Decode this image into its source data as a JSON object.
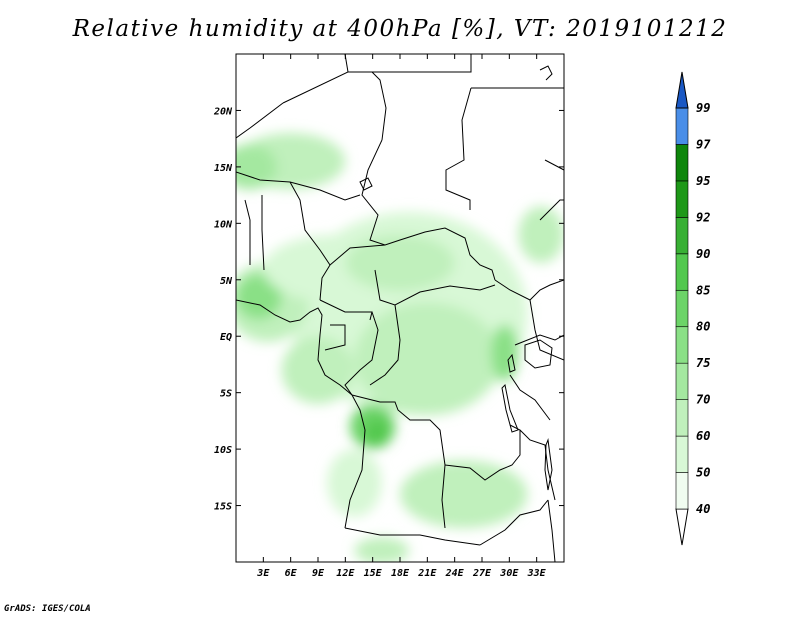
{
  "title": "Relative humidity at 400hPa [%], VT: 2019101212",
  "credit": "GrADS: IGES/COLA",
  "map": {
    "lon_range": [
      0,
      36
    ],
    "lat_range": [
      -20,
      25
    ],
    "lat_ticks": [
      {
        "lat": 20,
        "label": "20N"
      },
      {
        "lat": 15,
        "label": "15N"
      },
      {
        "lat": 10,
        "label": "10N"
      },
      {
        "lat": 5,
        "label": "5N"
      },
      {
        "lat": 0,
        "label": "EQ"
      },
      {
        "lat": -5,
        "label": "5S"
      },
      {
        "lat": -10,
        "label": "10S"
      },
      {
        "lat": -15,
        "label": "15S"
      }
    ],
    "lon_ticks": [
      {
        "lon": 3,
        "label": "3E"
      },
      {
        "lon": 6,
        "label": "6E"
      },
      {
        "lon": 9,
        "label": "9E"
      },
      {
        "lon": 12,
        "label": "12E"
      },
      {
        "lon": 15,
        "label": "15E"
      },
      {
        "lon": 18,
        "label": "18E"
      },
      {
        "lon": 21,
        "label": "21E"
      },
      {
        "lon": 24,
        "label": "24E"
      },
      {
        "lon": 27,
        "label": "27E"
      },
      {
        "lon": 30,
        "label": "30E"
      },
      {
        "lon": 33,
        "label": "33E"
      }
    ]
  },
  "colorbar": {
    "levels": [
      "40",
      "50",
      "60",
      "70",
      "75",
      "80",
      "85",
      "90",
      "92",
      "95",
      "97",
      "99"
    ],
    "colors": [
      "#f0fcf0",
      "#d8f8d6",
      "#c0f0bc",
      "#a4e8a0",
      "#8ae086",
      "#6cd468",
      "#52c84e",
      "#38b034",
      "#1e9818",
      "#0f860c",
      "#4a8ee8",
      "#2a6cd6",
      "#1a58c4"
    ]
  },
  "humidity_regions": [
    {
      "name": "sahel-band",
      "lon": 6.0,
      "lat": 15.5,
      "rx": 6.0,
      "ry": 2.5,
      "level": 1
    },
    {
      "name": "sahel-band-west",
      "lon": 1.5,
      "lat": 15.0,
      "rx": 3.0,
      "ry": 2.0,
      "level": 2
    },
    {
      "name": "central-africa-broad",
      "lon": 19.0,
      "lat": 2.0,
      "rx": 13.0,
      "ry": 9.0,
      "level": 0
    },
    {
      "name": "cameroon-west",
      "lon": 3.5,
      "lat": 3.0,
      "rx": 4.5,
      "ry": 3.5,
      "level": 1
    },
    {
      "name": "nigeria-core",
      "lon": 2.5,
      "lat": 3.5,
      "rx": 2.5,
      "ry": 2.0,
      "level": 3
    },
    {
      "name": "cameroon-highland",
      "lon": 11.0,
      "lat": 6.0,
      "rx": 8.0,
      "ry": 3.0,
      "level": 0
    },
    {
      "name": "car-center",
      "lon": 18.0,
      "lat": 6.5,
      "rx": 6.0,
      "ry": 2.5,
      "level": 1
    },
    {
      "name": "congo-basin",
      "lon": 21.0,
      "lat": -2.0,
      "rx": 8.0,
      "ry": 5.0,
      "level": 1
    },
    {
      "name": "kivu-lake",
      "lon": 29.5,
      "lat": -1.5,
      "rx": 1.5,
      "ry": 2.5,
      "level": 3
    },
    {
      "name": "angola-north",
      "lon": 15.0,
      "lat": -8.0,
      "rx": 2.5,
      "ry": 2.0,
      "level": 4
    },
    {
      "name": "angola-north-core",
      "lon": 15.5,
      "lat": -8.5,
      "rx": 1.3,
      "ry": 1.2,
      "level": 5
    },
    {
      "name": "zambia-south",
      "lon": 25.0,
      "lat": -14.0,
      "rx": 7.0,
      "ry": 3.0,
      "level": 1
    },
    {
      "name": "ethiopia-edge",
      "lon": 33.5,
      "lat": 9.0,
      "rx": 2.5,
      "ry": 2.5,
      "level": 1
    },
    {
      "name": "gabon-coast",
      "lon": 9.0,
      "lat": -3.0,
      "rx": 4.0,
      "ry": 3.0,
      "level": 1
    },
    {
      "name": "south-coast",
      "lon": 13.0,
      "lat": -13.0,
      "rx": 3.0,
      "ry": 3.0,
      "level": 0
    },
    {
      "name": "far-south",
      "lon": 16.0,
      "lat": -19.0,
      "rx": 3.0,
      "ry": 1.2,
      "level": 1
    }
  ]
}
